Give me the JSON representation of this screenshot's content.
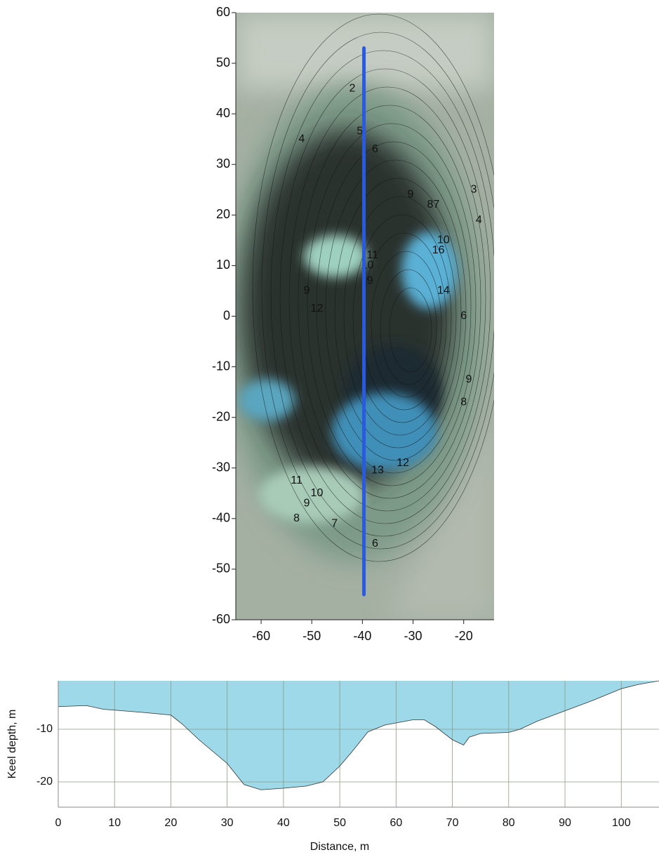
{
  "chart_data": [
    {
      "type": "contour",
      "xlim": [
        -65,
        -14
      ],
      "ylim": [
        -60,
        60
      ],
      "xticks": [
        -60,
        -50,
        -40,
        -30,
        -20
      ],
      "yticks": [
        -60,
        -50,
        -40,
        -30,
        -20,
        -10,
        0,
        10,
        20,
        30,
        40,
        50,
        60
      ],
      "series": [
        {
          "color": "#2a5ae0",
          "x": [
            -39.7,
            -39.7
          ],
          "values": [
            53,
            -55
          ]
        }
      ],
      "annotations": [
        {
          "text": "2",
          "x": -42,
          "y": 45
        },
        {
          "text": "5",
          "x": -40.5,
          "y": 36.5
        },
        {
          "text": "6",
          "x": -37.5,
          "y": 33
        },
        {
          "text": "4",
          "x": -52,
          "y": 35
        },
        {
          "text": "9",
          "x": -30.5,
          "y": 24
        },
        {
          "text": "3",
          "x": -18,
          "y": 25
        },
        {
          "text": "87",
          "x": -26,
          "y": 22
        },
        {
          "text": "4",
          "x": -17,
          "y": 19
        },
        {
          "text": "10",
          "x": -24,
          "y": 15
        },
        {
          "text": "16",
          "x": -25,
          "y": 13
        },
        {
          "text": "11",
          "x": -38,
          "y": 12
        },
        {
          "text": "10",
          "x": -39,
          "y": 10
        },
        {
          "text": "9",
          "x": -38.5,
          "y": 7
        },
        {
          "text": "9",
          "x": -51,
          "y": 5
        },
        {
          "text": "12",
          "x": -49,
          "y": 1.5
        },
        {
          "text": "14",
          "x": -24,
          "y": 5
        },
        {
          "text": "6",
          "x": -20,
          "y": 0
        },
        {
          "text": "9",
          "x": -19,
          "y": -12.5
        },
        {
          "text": "8",
          "x": -20,
          "y": -17
        },
        {
          "text": "13",
          "x": -37,
          "y": -30.5
        },
        {
          "text": "12",
          "x": -32,
          "y": -29
        },
        {
          "text": "11",
          "x": -53,
          "y": -32.5
        },
        {
          "text": "10",
          "x": -49,
          "y": -35
        },
        {
          "text": "9",
          "x": -51,
          "y": -37
        },
        {
          "text": "8",
          "x": -53,
          "y": -40
        },
        {
          "text": "7",
          "x": -45.5,
          "y": -41
        },
        {
          "text": "6",
          "x": -37.5,
          "y": -45
        }
      ]
    },
    {
      "type": "area",
      "xlabel": "Distance, m",
      "ylabel": "Keel depth, m",
      "xlim": [
        0,
        106.7
      ],
      "ylim": [
        -24.8,
        -0.8
      ],
      "xticks": [
        0,
        10,
        20,
        30,
        40,
        50,
        60,
        70,
        80,
        90,
        100
      ],
      "yticks": [
        -10,
        -20
      ],
      "grid": true,
      "color": "#9dd9e8",
      "x": [
        0,
        5,
        8,
        15,
        20,
        22,
        25,
        30,
        33,
        36,
        40,
        44,
        47,
        50,
        52,
        55,
        58,
        60,
        63,
        65,
        67,
        70,
        72,
        73,
        75,
        80,
        82,
        85,
        90,
        95,
        100,
        103,
        106.7
      ],
      "values": [
        -5.7,
        -5.5,
        -6.2,
        -6.8,
        -7.3,
        -9,
        -12,
        -16.5,
        -20.5,
        -21.5,
        -21.2,
        -20.8,
        -20,
        -17,
        -14.5,
        -10.5,
        -9.2,
        -8.8,
        -8.2,
        -8.2,
        -9.5,
        -12,
        -13,
        -11.5,
        -10.8,
        -10.6,
        -10,
        -8.5,
        -6.5,
        -4.5,
        -2.3,
        -1.5,
        -0.8
      ]
    }
  ]
}
